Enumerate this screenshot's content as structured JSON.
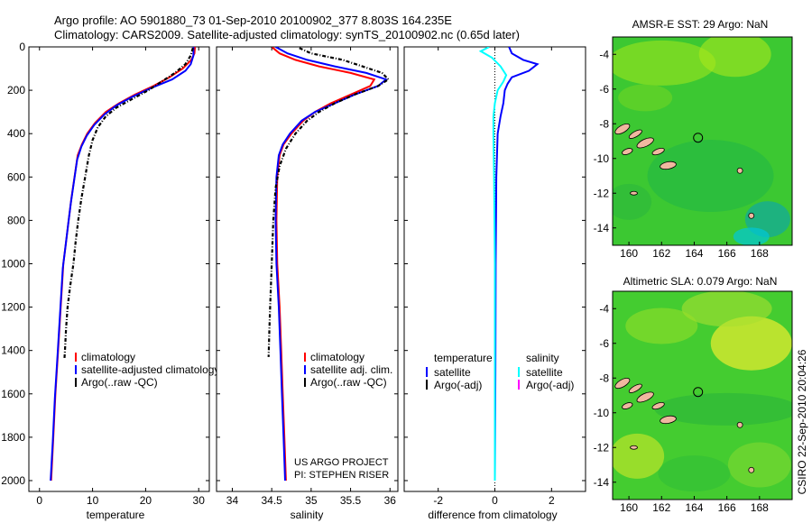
{
  "header": {
    "line1": "Argo profile: AO 5901880_73 01-Sep-2010 20100902_377 8.803S 164.235E",
    "line2": "Climatology: CARS2009. Satellite-adjusted climatology: synTS_20100902.nc (0.65d later)"
  },
  "side_text": "CSIRO 22-Sep-2010 20:04:26",
  "colors": {
    "climatology": "#ff0000",
    "satellite": "#0000ff",
    "argo": "#000000",
    "salinity_satellite": "#00ffff",
    "salinity_argo": "#ff00ff",
    "map_green": "#33cc33",
    "land": "#f0b8a0"
  },
  "chart_data": [
    {
      "type": "line",
      "id": "temperature",
      "xlabel": "temperature",
      "xticks": [
        0,
        10,
        20,
        30
      ],
      "xlim": [
        -2,
        32
      ],
      "ylim": [
        0,
        2050
      ],
      "yticks": [
        0,
        200,
        400,
        600,
        800,
        1000,
        1200,
        1400,
        1600,
        1800,
        2000
      ],
      "y_reversed": true,
      "legend": {
        "placement": "bottom-right",
        "items": [
          "climatology",
          "satellite-adjusted climatology",
          "Argo(..raw -QC)"
        ]
      },
      "series": [
        {
          "name": "climatology",
          "color": "#ff0000",
          "points": [
            [
              29.3,
              0
            ],
            [
              29.2,
              30
            ],
            [
              28.6,
              60
            ],
            [
              27.0,
              100
            ],
            [
              24.5,
              140
            ],
            [
              21.5,
              180
            ],
            [
              18.0,
              220
            ],
            [
              15.0,
              260
            ],
            [
              12.5,
              300
            ],
            [
              10.5,
              350
            ],
            [
              9.0,
              400
            ],
            [
              8.0,
              450
            ],
            [
              7.2,
              500
            ],
            [
              6.6,
              600
            ],
            [
              6.0,
              700
            ],
            [
              5.5,
              800
            ],
            [
              5.0,
              900
            ],
            [
              4.5,
              1000
            ],
            [
              4.0,
              1200
            ],
            [
              3.5,
              1400
            ],
            [
              3.0,
              1600
            ],
            [
              2.6,
              1800
            ],
            [
              2.2,
              2000
            ]
          ]
        },
        {
          "name": "satellite-adjusted climatology",
          "color": "#0000ff",
          "points": [
            [
              29.0,
              0
            ],
            [
              29.0,
              40
            ],
            [
              28.5,
              80
            ],
            [
              27.5,
              110
            ],
            [
              25.0,
              150
            ],
            [
              21.0,
              190
            ],
            [
              17.5,
              230
            ],
            [
              14.5,
              270
            ],
            [
              12.3,
              310
            ],
            [
              10.3,
              360
            ],
            [
              8.9,
              410
            ],
            [
              7.9,
              460
            ],
            [
              7.1,
              520
            ],
            [
              6.5,
              620
            ],
            [
              5.9,
              720
            ],
            [
              5.4,
              820
            ],
            [
              4.9,
              920
            ],
            [
              4.4,
              1020
            ],
            [
              3.9,
              1220
            ],
            [
              3.4,
              1420
            ],
            [
              2.9,
              1620
            ],
            [
              2.5,
              1820
            ],
            [
              2.1,
              2000
            ]
          ]
        },
        {
          "name": "Argo(..raw -QC)",
          "color": "#000000",
          "dash": "4,2,1,2",
          "points": [
            [
              28.9,
              5
            ],
            [
              28.5,
              40
            ],
            [
              27.5,
              80
            ],
            [
              25.5,
              120
            ],
            [
              23.0,
              160
            ],
            [
              20.5,
              200
            ],
            [
              17.5,
              240
            ],
            [
              14.5,
              280
            ],
            [
              12.5,
              320
            ],
            [
              11.0,
              370
            ],
            [
              10.0,
              430
            ],
            [
              9.3,
              500
            ],
            [
              8.6,
              600
            ],
            [
              7.9,
              700
            ],
            [
              7.3,
              800
            ],
            [
              6.8,
              900
            ],
            [
              6.4,
              1000
            ],
            [
              5.8,
              1100
            ],
            [
              5.3,
              1200
            ],
            [
              5.0,
              1300
            ],
            [
              4.8,
              1400
            ],
            [
              4.7,
              1440
            ]
          ]
        }
      ]
    },
    {
      "type": "line",
      "id": "salinity",
      "xlabel": "salinity",
      "xticks": [
        34,
        34.5,
        35,
        35.5,
        36
      ],
      "xlim": [
        33.8,
        36.1
      ],
      "ylim": [
        0,
        2050
      ],
      "y_reversed": true,
      "legend": {
        "placement": "bottom-right",
        "items": [
          "climatology",
          "satellite adj. clim.",
          "Argo(..raw -QC)"
        ]
      },
      "annotation": {
        "line1": "US ARGO PROJECT",
        "line2": "PI: STEPHEN RISER"
      },
      "series": [
        {
          "name": "climatology",
          "color": "#ff0000",
          "points": [
            [
              34.5,
              0
            ],
            [
              34.6,
              30
            ],
            [
              34.8,
              60
            ],
            [
              35.1,
              90
            ],
            [
              35.5,
              120
            ],
            [
              35.8,
              150
            ],
            [
              35.75,
              180
            ],
            [
              35.5,
              220
            ],
            [
              35.25,
              260
            ],
            [
              35.05,
              300
            ],
            [
              34.9,
              340
            ],
            [
              34.75,
              400
            ],
            [
              34.65,
              450
            ],
            [
              34.6,
              500
            ],
            [
              34.57,
              600
            ],
            [
              34.56,
              800
            ],
            [
              34.57,
              1000
            ],
            [
              34.6,
              1200
            ],
            [
              34.62,
              1400
            ],
            [
              34.64,
              1600
            ],
            [
              34.66,
              1800
            ],
            [
              34.68,
              2000
            ]
          ]
        },
        {
          "name": "satellite adj. clim.",
          "color": "#0000ff",
          "points": [
            [
              34.55,
              0
            ],
            [
              34.7,
              30
            ],
            [
              34.95,
              60
            ],
            [
              35.3,
              90
            ],
            [
              35.7,
              120
            ],
            [
              35.95,
              150
            ],
            [
              35.85,
              180
            ],
            [
              35.55,
              220
            ],
            [
              35.3,
              260
            ],
            [
              35.05,
              300
            ],
            [
              34.88,
              340
            ],
            [
              34.73,
              400
            ],
            [
              34.64,
              450
            ],
            [
              34.59,
              500
            ],
            [
              34.56,
              600
            ],
            [
              34.55,
              800
            ],
            [
              34.56,
              1000
            ],
            [
              34.59,
              1200
            ],
            [
              34.61,
              1400
            ],
            [
              34.63,
              1600
            ],
            [
              34.65,
              1800
            ],
            [
              34.67,
              2000
            ]
          ]
        },
        {
          "name": "Argo(..raw -QC)",
          "color": "#000000",
          "dash": "4,2,1,2",
          "points": [
            [
              34.85,
              5
            ],
            [
              35.0,
              30
            ],
            [
              35.4,
              60
            ],
            [
              35.65,
              90
            ],
            [
              35.9,
              120
            ],
            [
              35.98,
              150
            ],
            [
              35.85,
              180
            ],
            [
              35.55,
              220
            ],
            [
              35.3,
              260
            ],
            [
              35.1,
              300
            ],
            [
              34.95,
              340
            ],
            [
              34.8,
              400
            ],
            [
              34.68,
              470
            ],
            [
              34.6,
              550
            ],
            [
              34.55,
              650
            ],
            [
              34.52,
              800
            ],
            [
              34.5,
              1000
            ],
            [
              34.48,
              1200
            ],
            [
              34.47,
              1300
            ],
            [
              34.46,
              1430
            ]
          ]
        }
      ]
    },
    {
      "type": "line",
      "id": "difference",
      "xlabel": "difference from climatology",
      "xticks": [
        -2,
        0,
        2
      ],
      "xlim": [
        -3.2,
        3.2
      ],
      "ylim": [
        0,
        2050
      ],
      "y_reversed": true,
      "legend": {
        "placement": "bottom",
        "temperature_header": "temperature",
        "salinity_header": "salinity",
        "items": [
          "satellite",
          "Argo(-adj)",
          "satellite",
          "Argo(-adj)"
        ]
      },
      "series": [
        {
          "name": "temperature satellite",
          "color": "#0000ff",
          "points": [
            [
              0.5,
              0
            ],
            [
              0.6,
              30
            ],
            [
              1.0,
              60
            ],
            [
              1.5,
              80
            ],
            [
              1.2,
              110
            ],
            [
              0.6,
              140
            ],
            [
              0.45,
              170
            ],
            [
              0.35,
              200
            ],
            [
              0.3,
              260
            ],
            [
              0.2,
              320
            ],
            [
              0.1,
              400
            ],
            [
              0.05,
              600
            ],
            [
              0.03,
              1000
            ],
            [
              0.02,
              1500
            ],
            [
              0.0,
              2000
            ]
          ]
        },
        {
          "name": "salinity satellite",
          "color": "#00ffff",
          "points": [
            [
              -0.2,
              0
            ],
            [
              -0.5,
              20
            ],
            [
              -0.1,
              50
            ],
            [
              0.2,
              90
            ],
            [
              0.4,
              130
            ],
            [
              0.3,
              160
            ],
            [
              0.1,
              200
            ],
            [
              0.0,
              260
            ],
            [
              -0.05,
              320
            ],
            [
              -0.05,
              400
            ],
            [
              -0.03,
              600
            ],
            [
              0.0,
              1000
            ],
            [
              0.0,
              1500
            ],
            [
              0.0,
              2000
            ]
          ]
        }
      ]
    },
    {
      "type": "heatmap",
      "id": "amsre_map",
      "title": "AMSR-E SST: 29 Argo: NaN",
      "xticks": [
        160,
        162,
        164,
        166,
        168
      ],
      "yticks": [
        -4,
        -6,
        -8,
        -10,
        -12,
        -14
      ],
      "xlim": [
        159,
        170
      ],
      "ylim": [
        -15,
        -3
      ],
      "argo_location": [
        164.235,
        -8.803
      ]
    },
    {
      "type": "heatmap",
      "id": "sla_map",
      "title": "Altimetric SLA: 0.079 Argo: NaN",
      "xticks": [
        160,
        162,
        164,
        166,
        168
      ],
      "yticks": [
        -4,
        -6,
        -8,
        -10,
        -12,
        -14
      ],
      "xlim": [
        159,
        170
      ],
      "ylim": [
        -15,
        -3
      ],
      "argo_location": [
        164.235,
        -8.803
      ]
    }
  ]
}
